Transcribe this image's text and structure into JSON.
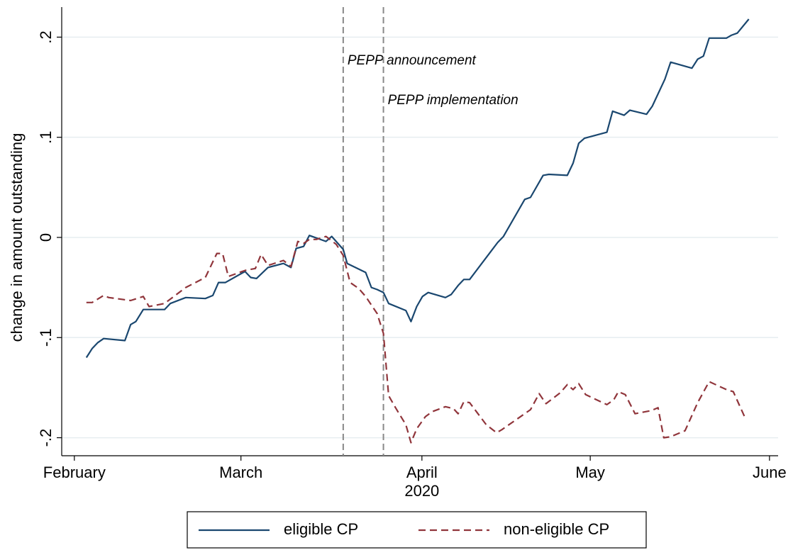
{
  "chart_data": {
    "type": "line",
    "ylabel": "change in amount outstanding",
    "xlabel": "2020",
    "xlim": [
      -2.2,
      122.5
    ],
    "ylim": [
      -0.218,
      0.23
    ],
    "xticks": [
      {
        "value": 0,
        "label": "February"
      },
      {
        "value": 29,
        "label": "March"
      },
      {
        "value": 60.5,
        "label": "April"
      },
      {
        "value": 89.8,
        "label": "May"
      },
      {
        "value": 121,
        "label": "June"
      }
    ],
    "yticks": [
      {
        "value": -0.2,
        "label": "-.2"
      },
      {
        "value": -0.1,
        "label": "-.1"
      },
      0,
      {
        "value": 0.1,
        "label": ".1"
      },
      {
        "value": 0.2,
        "label": ".2"
      }
    ],
    "grid": true,
    "annotations": [
      {
        "text": "PEPP announcement",
        "x": 46.8
      },
      {
        "text": "PEPP implementation",
        "x": 53.8
      }
    ],
    "series": [
      {
        "name": "eligible CP",
        "color": "#1a476f",
        "dash": false,
        "x": [
          2.1,
          3.1,
          4.1,
          5.1,
          8.8,
          9.8,
          10.7,
          12,
          15.7,
          16.7,
          19.4,
          22.8,
          24.1,
          25.1,
          26.3,
          29.7,
          30.7,
          31.7,
          33.7,
          36.4,
          37.7,
          38.6,
          39.9,
          40.9,
          43.8,
          44.8,
          46.8,
          47.5,
          50.7,
          51.7,
          52.7,
          53.8,
          54.7,
          57.7,
          58.6,
          59.6,
          60.6,
          61.6,
          64.6,
          65.6,
          66.8,
          67.8,
          68.8,
          72.5,
          73.7,
          74.7,
          78.4,
          79.4,
          81.6,
          82.6,
          85.8,
          86.8,
          87.8,
          88.8,
          92.7,
          93.7,
          95.7,
          96.7,
          99.6,
          100.6,
          102.8,
          103.8,
          107.5,
          108.5,
          109.5,
          110.5,
          113.5,
          114.4,
          115.4,
          117.4
        ],
        "values": [
          -0.12,
          -0.111,
          -0.105,
          -0.101,
          -0.103,
          -0.087,
          -0.084,
          -0.072,
          -0.072,
          -0.066,
          -0.06,
          -0.061,
          -0.058,
          -0.045,
          -0.045,
          -0.034,
          -0.04,
          -0.041,
          -0.03,
          -0.026,
          -0.03,
          -0.011,
          -0.009,
          0.002,
          -0.004,
          0.001,
          -0.012,
          -0.026,
          -0.035,
          -0.05,
          -0.052,
          -0.055,
          -0.066,
          -0.073,
          -0.084,
          -0.069,
          -0.059,
          -0.055,
          -0.06,
          -0.057,
          -0.048,
          -0.042,
          -0.042,
          -0.014,
          -0.005,
          0.001,
          0.038,
          0.04,
          0.062,
          0.063,
          0.062,
          0.074,
          0.094,
          0.099,
          0.105,
          0.126,
          0.122,
          0.127,
          0.123,
          0.131,
          0.158,
          0.175,
          0.169,
          0.178,
          0.181,
          0.199,
          0.199,
          0.202,
          0.204,
          0.218
        ]
      },
      {
        "name": "non-eligible CP",
        "color": "#90353b",
        "dash": true,
        "x": [
          2.1,
          3.1,
          5.1,
          6,
          9.8,
          12,
          13,
          15.7,
          19.4,
          22.8,
          24.8,
          25.8,
          26.8,
          29.7,
          31.5,
          32.5,
          33.7,
          36.4,
          37.7,
          38.9,
          39.9,
          40.9,
          42.1,
          43.8,
          45.6,
          46.8,
          48,
          49.5,
          50.7,
          52.7,
          53.8,
          54.7,
          55.9,
          57.7,
          58.6,
          59.6,
          61.1,
          62.3,
          64.6,
          66,
          66.8,
          67.8,
          68.8,
          71.7,
          73.5,
          74.4,
          79.4,
          80.9,
          82.1,
          84.6,
          85.8,
          86.8,
          87.8,
          89,
          92.7,
          93.9,
          94.7,
          95.9,
          97.6,
          100.4,
          101.6,
          102.6,
          103.8,
          106.3,
          108.5,
          110.5,
          113.5,
          114.7,
          116.9
        ],
        "values": [
          -0.065,
          -0.065,
          -0.058,
          -0.06,
          -0.063,
          -0.059,
          -0.069,
          -0.066,
          -0.05,
          -0.04,
          -0.016,
          -0.016,
          -0.039,
          -0.033,
          -0.031,
          -0.017,
          -0.028,
          -0.023,
          -0.029,
          -0.004,
          -0.006,
          -0.002,
          -0.002,
          0.001,
          -0.007,
          -0.018,
          -0.045,
          -0.051,
          -0.059,
          -0.076,
          -0.096,
          -0.158,
          -0.17,
          -0.187,
          -0.205,
          -0.191,
          -0.179,
          -0.174,
          -0.169,
          -0.171,
          -0.176,
          -0.164,
          -0.165,
          -0.187,
          -0.195,
          -0.192,
          -0.172,
          -0.156,
          -0.166,
          -0.155,
          -0.147,
          -0.152,
          -0.146,
          -0.157,
          -0.167,
          -0.162,
          -0.154,
          -0.157,
          -0.176,
          -0.173,
          -0.17,
          -0.2,
          -0.199,
          -0.193,
          -0.165,
          -0.144,
          -0.152,
          -0.154,
          -0.182
        ]
      }
    ]
  }
}
